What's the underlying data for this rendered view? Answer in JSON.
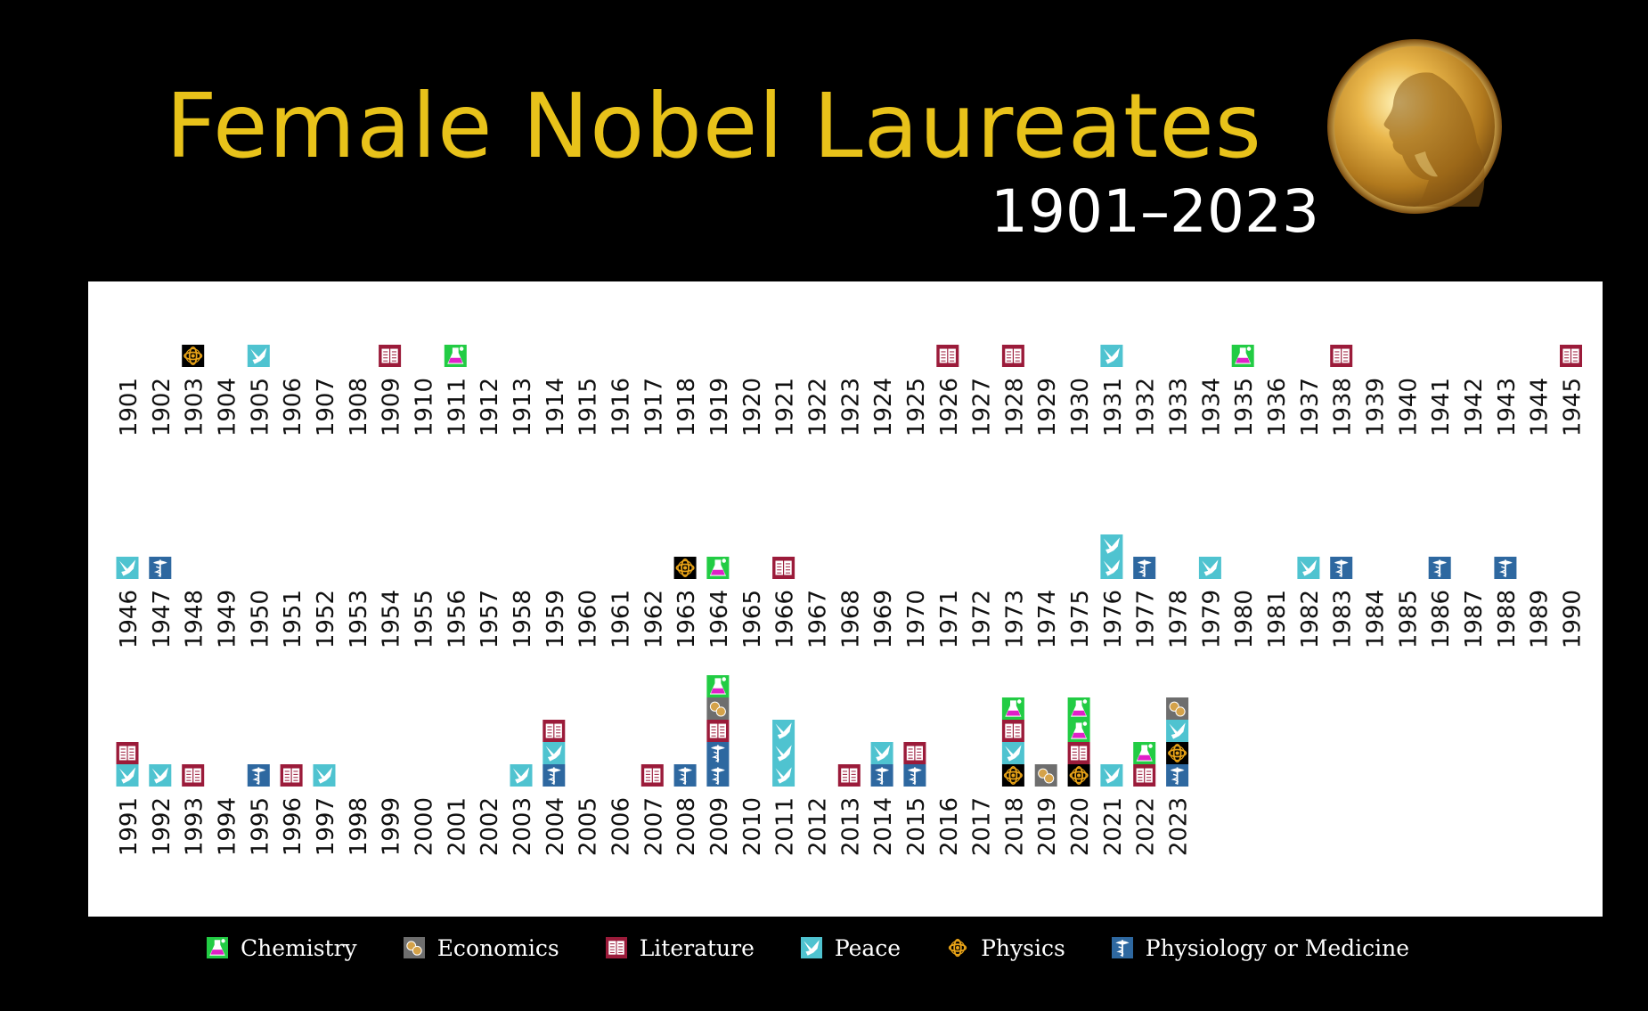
{
  "title": "Female Nobel Laureates",
  "subtitle": "1901–2023",
  "categories": {
    "Chemistry": {
      "color": "#22cc44",
      "icon": "flask-icon"
    },
    "Economics": {
      "color": "#6e6e6e",
      "icon": "coins-icon"
    },
    "Literature": {
      "color": "#9b1b3a",
      "icon": "book-icon"
    },
    "Peace": {
      "color": "#4fc3d0",
      "icon": "dove-icon"
    },
    "Physics": {
      "color": "#e8a317",
      "icon": "atom-icon"
    },
    "Physiology or Medicine": {
      "color": "#2e68a0",
      "icon": "caduceus-icon"
    }
  },
  "legend": [
    {
      "key": "Chemistry",
      "label": "Chemistry"
    },
    {
      "key": "Economics",
      "label": "Economics"
    },
    {
      "key": "Literature",
      "label": "Literature"
    },
    {
      "key": "Peace",
      "label": "Peace"
    },
    {
      "key": "Physics",
      "label": "Physics"
    },
    {
      "key": "Physiology or Medicine",
      "label": "Physiology or Medicine"
    }
  ],
  "chart_data": {
    "type": "stacked-icon-timeline",
    "x_ranges": [
      [
        1901,
        1945
      ],
      [
        1946,
        1990
      ],
      [
        1991,
        2023
      ]
    ],
    "awards": {
      "1903": [
        "Physics"
      ],
      "1905": [
        "Peace"
      ],
      "1909": [
        "Literature"
      ],
      "1911": [
        "Chemistry"
      ],
      "1926": [
        "Literature"
      ],
      "1928": [
        "Literature"
      ],
      "1931": [
        "Peace"
      ],
      "1935": [
        "Chemistry"
      ],
      "1938": [
        "Literature"
      ],
      "1945": [
        "Literature"
      ],
      "1946": [
        "Peace"
      ],
      "1947": [
        "Physiology or Medicine"
      ],
      "1963": [
        "Physics"
      ],
      "1964": [
        "Chemistry"
      ],
      "1966": [
        "Literature"
      ],
      "1976": [
        "Peace",
        "Peace"
      ],
      "1977": [
        "Physiology or Medicine"
      ],
      "1979": [
        "Peace"
      ],
      "1982": [
        "Peace"
      ],
      "1983": [
        "Physiology or Medicine"
      ],
      "1986": [
        "Physiology or Medicine"
      ],
      "1988": [
        "Physiology or Medicine"
      ],
      "1991": [
        "Peace",
        "Literature"
      ],
      "1992": [
        "Peace"
      ],
      "1993": [
        "Literature"
      ],
      "1995": [
        "Physiology or Medicine"
      ],
      "1996": [
        "Literature"
      ],
      "1997": [
        "Peace"
      ],
      "2003": [
        "Peace"
      ],
      "2004": [
        "Physiology or Medicine",
        "Peace",
        "Literature"
      ],
      "2007": [
        "Literature"
      ],
      "2008": [
        "Physiology or Medicine"
      ],
      "2009": [
        "Physiology or Medicine",
        "Physiology or Medicine",
        "Literature",
        "Economics",
        "Chemistry"
      ],
      "2011": [
        "Peace",
        "Peace",
        "Peace"
      ],
      "2013": [
        "Literature"
      ],
      "2014": [
        "Physiology or Medicine",
        "Peace"
      ],
      "2015": [
        "Physiology or Medicine",
        "Literature"
      ],
      "2018": [
        "Physics",
        "Peace",
        "Literature",
        "Chemistry"
      ],
      "2019": [
        "Economics"
      ],
      "2020": [
        "Physics",
        "Literature",
        "Chemistry",
        "Chemistry"
      ],
      "2021": [
        "Peace"
      ],
      "2022": [
        "Literature",
        "Chemistry"
      ],
      "2023": [
        "Physiology or Medicine",
        "Physics",
        "Peace",
        "Economics"
      ]
    }
  }
}
